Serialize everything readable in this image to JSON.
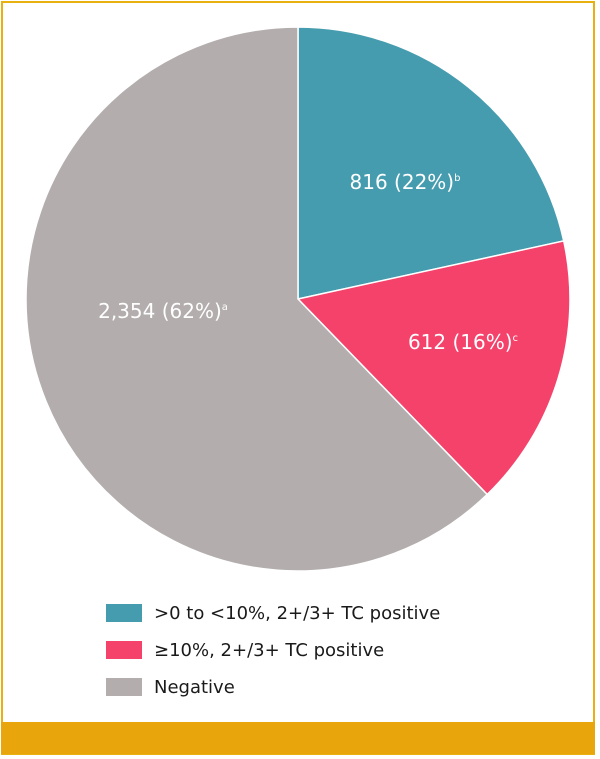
{
  "colors": {
    "border": "#e8b10f",
    "band": "#e8a50c",
    "teal": "#469caf",
    "pink": "#f4426b",
    "grey": "#b3adad"
  },
  "chart_data": {
    "type": "pie",
    "slices": [
      {
        "label": ">0 to <10%, 2+/3+ TC positive",
        "value": 816,
        "percent": 22,
        "display": "816 (22%)",
        "footnote": "b",
        "color": "#469caf"
      },
      {
        "label": "≥10%, 2+/3+ TC positive",
        "value": 612,
        "percent": 16,
        "display": "612 (16%)",
        "footnote": "c",
        "color": "#f4426b"
      },
      {
        "label": "Negative",
        "value": 2354,
        "percent": 62,
        "display": "2,354 (62%)",
        "footnote": "a",
        "color": "#b3adad"
      }
    ],
    "start_angle": "12 o'clock",
    "direction": "clockwise",
    "legend_position": "bottom"
  }
}
